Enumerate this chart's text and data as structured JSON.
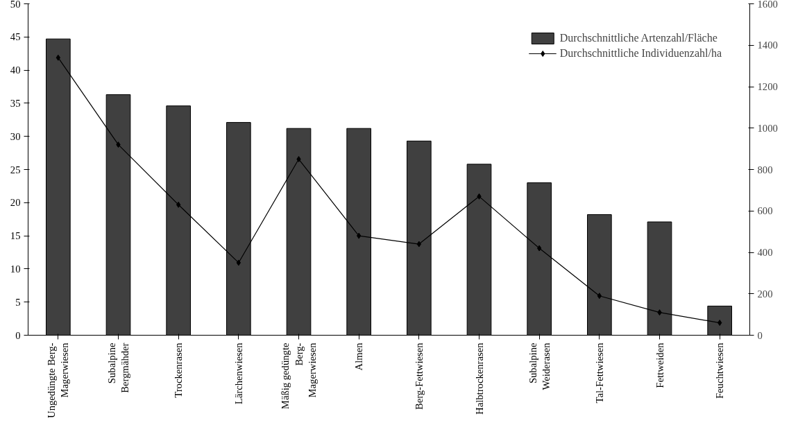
{
  "chart_data": {
    "type": "bar",
    "categories": [
      "Ungedüngte Berg-\nMagerwiesen",
      "Subalpine\nBergmähder",
      "Trockenrasen",
      "Lärchenwiesen",
      "Mäßig gedüngte\nBerg-\nMagerwiesen",
      "Almen",
      "Berg-Fettwiesen",
      "Halbtrockenrasen",
      "Subalpine\nWeiderasen",
      "Tal-Fettwiesen",
      "Fettweiden",
      "Feuchtwiesen"
    ],
    "series": [
      {
        "name": "Durchschnittliche Artenzahl/Fläche",
        "color": "#404040",
        "values": [
          44.7,
          36.3,
          34.6,
          32.1,
          31.2,
          31.2,
          29.3,
          25.8,
          23.0,
          18.2,
          17.1,
          4.4
        ]
      },
      {
        "name": "Durchschnittliche Individuenzahl/ha",
        "type": "line",
        "axis": "y2",
        "color": "#000000",
        "marker": "diamond",
        "values": [
          1340,
          920,
          630,
          350,
          850,
          480,
          440,
          670,
          420,
          190,
          110,
          60
        ]
      }
    ],
    "ylim": [
      0,
      50
    ],
    "yticks": [
      0,
      5,
      10,
      15,
      20,
      25,
      30,
      35,
      40,
      45,
      50
    ],
    "y2lim": [
      0,
      1600
    ],
    "y2ticks": [
      0,
      200,
      400,
      600,
      800,
      1000,
      1200,
      1400,
      1600
    ],
    "legend": "top right",
    "grid": false
  }
}
